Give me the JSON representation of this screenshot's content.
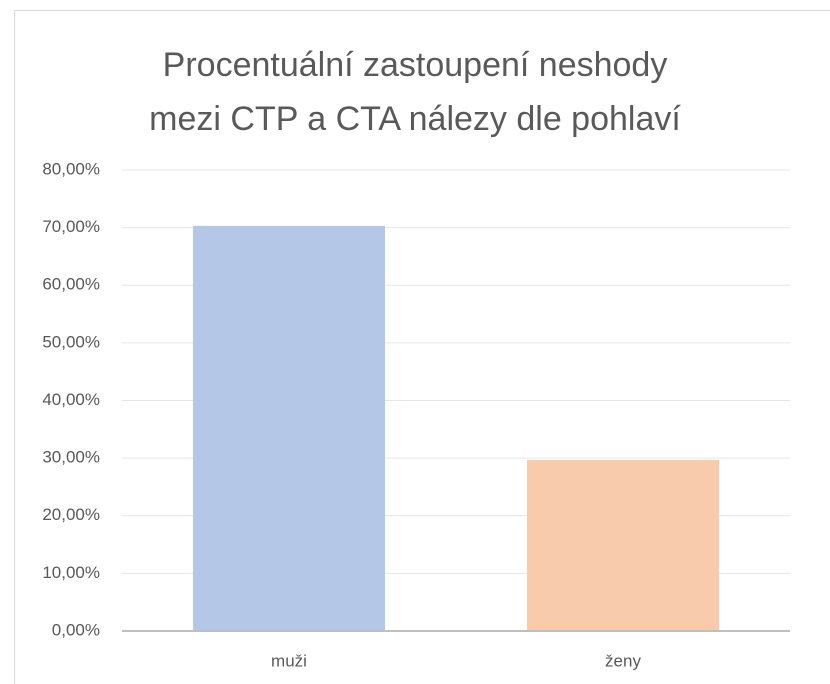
{
  "chart_data": {
    "type": "bar",
    "title": "Procentuální zastoupení neshody mezi CTP a CTA nálezy dle pohlaví",
    "categories": [
      "muži",
      "ženy"
    ],
    "values": [
      70.3,
      29.7
    ],
    "colors": [
      "#b4c7e7",
      "#f8cbad"
    ],
    "ylim": [
      0,
      80
    ],
    "yticks": [
      {
        "value": 0,
        "label": "0,00%"
      },
      {
        "value": 10,
        "label": "10,00%"
      },
      {
        "value": 20,
        "label": "20,00%"
      },
      {
        "value": 30,
        "label": "30,00%"
      },
      {
        "value": 40,
        "label": "40,00%"
      },
      {
        "value": 50,
        "label": "50,00%"
      },
      {
        "value": 60,
        "label": "60,00%"
      },
      {
        "value": 70,
        "label": "70,00%"
      },
      {
        "value": 80,
        "label": "80,00%"
      }
    ],
    "grid": true
  }
}
